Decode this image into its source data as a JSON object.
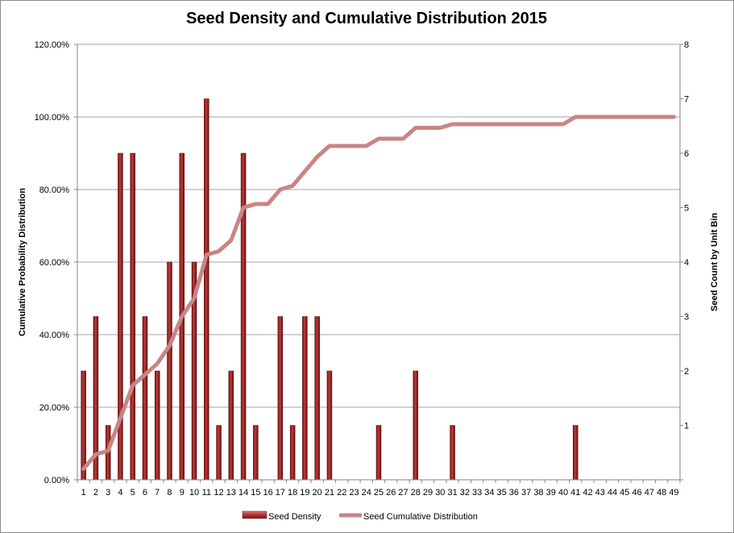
{
  "chart_data": {
    "type": "bar",
    "title": "Seed Density and Cumulative Distribution 2015",
    "xlabel": "",
    "categories": [
      "1",
      "2",
      "3",
      "4",
      "5",
      "6",
      "7",
      "8",
      "9",
      "10",
      "11",
      "12",
      "13",
      "14",
      "15",
      "16",
      "17",
      "18",
      "19",
      "20",
      "21",
      "22",
      "23",
      "24",
      "25",
      "26",
      "27",
      "28",
      "29",
      "30",
      "31",
      "32",
      "33",
      "34",
      "35",
      "36",
      "37",
      "38",
      "39",
      "40",
      "41",
      "42",
      "43",
      "44",
      "45",
      "46",
      "47",
      "48",
      "49"
    ],
    "y_left": {
      "label": "Cumulative Probability Distribution",
      "range": [
        0,
        1.2
      ],
      "ticks": [
        "0.00%",
        "20.00%",
        "40.00%",
        "60.00%",
        "80.00%",
        "100.00%",
        "120.00%"
      ]
    },
    "y_right": {
      "label": "Seed Count by Unit Bin",
      "range": [
        0,
        8
      ],
      "ticks": [
        "",
        "1",
        "2",
        "3",
        "4",
        "5",
        "6",
        "7",
        "8"
      ]
    },
    "grid": true,
    "legend_position": "bottom",
    "series": [
      {
        "name": "Seed Density",
        "type": "bar",
        "axis": "right",
        "color": "#a52a2a",
        "values": [
          2,
          3,
          1,
          6,
          6,
          3,
          2,
          4,
          6,
          4,
          7,
          1,
          2,
          6,
          1,
          0,
          3,
          1,
          3,
          3,
          2,
          0,
          0,
          0,
          1,
          0,
          0,
          2,
          0,
          0,
          1,
          0,
          0,
          0,
          0,
          0,
          0,
          0,
          0,
          0,
          1,
          0,
          0,
          0,
          0,
          0,
          0,
          0,
          0
        ]
      },
      {
        "name": "Seed Cumulative Distribution",
        "type": "line",
        "axis": "left",
        "color": "#c98585",
        "values": [
          0.03,
          0.07,
          0.08,
          0.17,
          0.26,
          0.29,
          0.32,
          0.37,
          0.45,
          0.5,
          0.62,
          0.63,
          0.66,
          0.75,
          0.76,
          0.76,
          0.8,
          0.81,
          0.85,
          0.89,
          0.92,
          0.92,
          0.92,
          0.92,
          0.94,
          0.94,
          0.94,
          0.97,
          0.97,
          0.97,
          0.98,
          0.98,
          0.98,
          0.98,
          0.98,
          0.98,
          0.98,
          0.98,
          0.98,
          0.98,
          1.0,
          1.0,
          1.0,
          1.0,
          1.0,
          1.0,
          1.0,
          1.0,
          1.0
        ]
      }
    ]
  }
}
